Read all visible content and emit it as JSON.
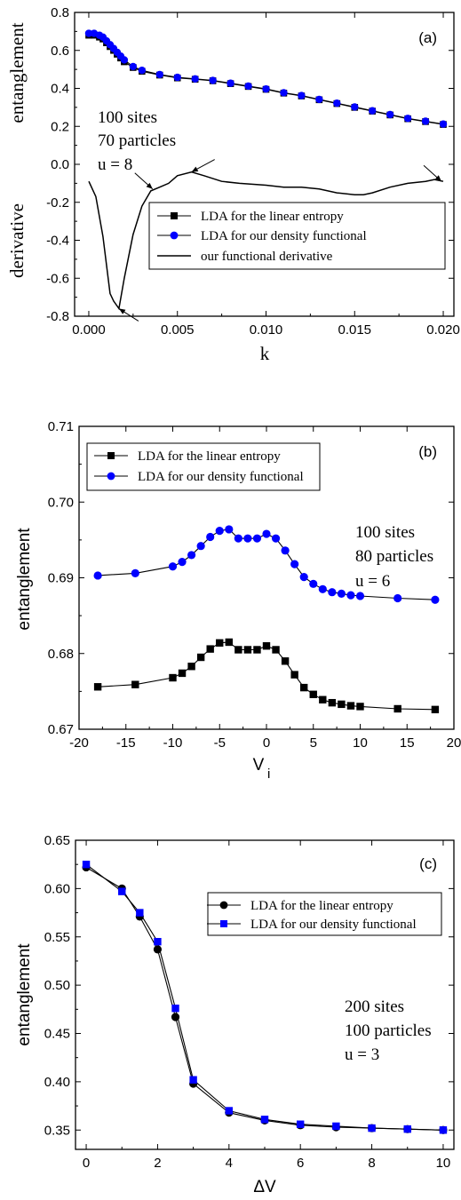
{
  "chart_data": [
    {
      "type": "line",
      "panel_label": "(a)",
      "xlabel": "k",
      "ylabel_top": "entanglement",
      "ylabel_bottom": "derivative",
      "xlim": [
        -0.0008,
        0.0206
      ],
      "ylim": [
        -0.8,
        0.8
      ],
      "xticks": [
        "0.000",
        "0.005",
        "0.010",
        "0.015",
        "0.020"
      ],
      "yticks": [
        "-0.8",
        "-0.6",
        "-0.4",
        "-0.2",
        "0.0",
        "0.2",
        "0.4",
        "0.6",
        "0.8"
      ],
      "annotations": [
        "100 sites",
        "70 particles",
        "u = 8"
      ],
      "legend_placement": "center-right",
      "arrows": [
        {
          "x": 0.0017,
          "y": -0.76
        },
        {
          "x": 0.0036,
          "y": -0.13
        },
        {
          "x": 0.0058,
          "y": -0.04
        },
        {
          "x": 0.0199,
          "y": -0.09
        }
      ],
      "series": [
        {
          "name": "LDA for the linear entropy",
          "marker": "square",
          "color": "#000000",
          "x": [
            0.0,
            0.0003,
            0.0006,
            0.0008,
            0.001,
            0.0012,
            0.0014,
            0.0016,
            0.0018,
            0.002,
            0.0025,
            0.003,
            0.004,
            0.005,
            0.006,
            0.007,
            0.008,
            0.009,
            0.01,
            0.011,
            0.012,
            0.013,
            0.014,
            0.015,
            0.016,
            0.017,
            0.018,
            0.019,
            0.02
          ],
          "y": [
            0.68,
            0.68,
            0.67,
            0.66,
            0.64,
            0.62,
            0.6,
            0.58,
            0.56,
            0.54,
            0.51,
            0.49,
            0.47,
            0.455,
            0.448,
            0.44,
            0.425,
            0.41,
            0.395,
            0.375,
            0.36,
            0.34,
            0.32,
            0.3,
            0.28,
            0.26,
            0.24,
            0.225,
            0.21
          ]
        },
        {
          "name": "LDA for our density functional",
          "marker": "circle",
          "color": "#0000ff",
          "x": [
            0.0,
            0.0003,
            0.0006,
            0.0008,
            0.001,
            0.0012,
            0.0014,
            0.0016,
            0.0018,
            0.002,
            0.0025,
            0.003,
            0.004,
            0.005,
            0.006,
            0.007,
            0.008,
            0.009,
            0.01,
            0.011,
            0.012,
            0.013,
            0.014,
            0.015,
            0.016,
            0.017,
            0.018,
            0.019,
            0.02
          ],
          "y": [
            0.69,
            0.69,
            0.68,
            0.67,
            0.65,
            0.63,
            0.61,
            0.59,
            0.57,
            0.55,
            0.515,
            0.495,
            0.473,
            0.458,
            0.45,
            0.442,
            0.427,
            0.412,
            0.397,
            0.377,
            0.362,
            0.342,
            0.322,
            0.302,
            0.282,
            0.262,
            0.242,
            0.227,
            0.212
          ]
        },
        {
          "name": "our functional derivative",
          "marker": "none",
          "color": "#000000",
          "x": [
            0.0,
            0.0004,
            0.0008,
            0.0012,
            0.0014,
            0.0017,
            0.002,
            0.0025,
            0.003,
            0.0035,
            0.004,
            0.0045,
            0.005,
            0.0058,
            0.0065,
            0.0075,
            0.0085,
            0.01,
            0.011,
            0.012,
            0.013,
            0.014,
            0.015,
            0.0155,
            0.016,
            0.017,
            0.018,
            0.019,
            0.0195,
            0.02
          ],
          "y": [
            -0.09,
            -0.17,
            -0.38,
            -0.68,
            -0.72,
            -0.76,
            -0.6,
            -0.37,
            -0.22,
            -0.14,
            -0.12,
            -0.1,
            -0.06,
            -0.04,
            -0.06,
            -0.09,
            -0.1,
            -0.11,
            -0.12,
            -0.12,
            -0.13,
            -0.15,
            -0.16,
            -0.16,
            -0.15,
            -0.12,
            -0.1,
            -0.09,
            -0.08,
            -0.09
          ]
        }
      ]
    },
    {
      "type": "line",
      "panel_label": "(b)",
      "xlabel": "V",
      "xlabel_subscript": "i",
      "ylabel": "entanglement",
      "xlim": [
        -20,
        20
      ],
      "ylim": [
        0.67,
        0.71
      ],
      "xticks": [
        "-20",
        "-15",
        "-10",
        "-5",
        "0",
        "5",
        "10",
        "15",
        "20"
      ],
      "yticks": [
        "0.67",
        "0.68",
        "0.69",
        "0.70",
        "0.71"
      ],
      "annotations": [
        "100 sites",
        "80 particles",
        "u = 6"
      ],
      "legend_placement": "top-left",
      "series": [
        {
          "name": "LDA for the linear entropy",
          "marker": "square",
          "color": "#000000",
          "x": [
            -18,
            -14,
            -10,
            -9,
            -8,
            -7,
            -6,
            -5,
            -4,
            -3,
            -2,
            -1,
            0,
            1,
            2,
            3,
            4,
            5,
            6,
            7,
            8,
            9,
            10,
            14,
            18
          ],
          "y": [
            0.6756,
            0.6759,
            0.6768,
            0.6774,
            0.6783,
            0.6795,
            0.6806,
            0.6814,
            0.6815,
            0.6805,
            0.6805,
            0.6805,
            0.681,
            0.6805,
            0.679,
            0.6772,
            0.6755,
            0.6746,
            0.6739,
            0.6735,
            0.6733,
            0.6731,
            0.673,
            0.6727,
            0.6726
          ]
        },
        {
          "name": "LDA for our density functional",
          "marker": "circle",
          "color": "#0000ff",
          "x": [
            -18,
            -14,
            -10,
            -9,
            -8,
            -7,
            -6,
            -5,
            -4,
            -3,
            -2,
            -1,
            0,
            1,
            2,
            3,
            4,
            5,
            6,
            7,
            8,
            9,
            10,
            14,
            18
          ],
          "y": [
            0.6903,
            0.6906,
            0.6915,
            0.6921,
            0.693,
            0.6942,
            0.6954,
            0.6962,
            0.6964,
            0.6952,
            0.6952,
            0.6952,
            0.6958,
            0.6952,
            0.6936,
            0.6918,
            0.6901,
            0.6892,
            0.6885,
            0.6881,
            0.6879,
            0.6877,
            0.6876,
            0.6873,
            0.6871
          ]
        }
      ]
    },
    {
      "type": "line",
      "panel_label": "(c)",
      "xlabel": "ΔV",
      "ylabel": "entanglement",
      "xlim": [
        -0.3,
        10.3
      ],
      "ylim": [
        0.33,
        0.65
      ],
      "xticks": [
        "0",
        "2",
        "4",
        "6",
        "8",
        "10"
      ],
      "yticks": [
        "0.35",
        "0.40",
        "0.45",
        "0.50",
        "0.55",
        "0.60",
        "0.65"
      ],
      "annotations": [
        "200 sites",
        "100 particles",
        "u = 3"
      ],
      "legend_placement": "top-right",
      "series": [
        {
          "name": "LDA for the linear entropy",
          "marker": "circle",
          "color": "#000000",
          "x": [
            0,
            1,
            1.5,
            2,
            2.5,
            3,
            4,
            5,
            6,
            7,
            8,
            9,
            10
          ],
          "y": [
            0.622,
            0.6,
            0.571,
            0.537,
            0.467,
            0.398,
            0.368,
            0.36,
            0.355,
            0.353,
            0.352,
            0.351,
            0.35
          ]
        },
        {
          "name": "LDA for our density functional",
          "marker": "square",
          "color": "#0000ff",
          "x": [
            0,
            1,
            1.5,
            2,
            2.5,
            3,
            4,
            5,
            6,
            7,
            8,
            9,
            10
          ],
          "y": [
            0.625,
            0.597,
            0.575,
            0.545,
            0.476,
            0.402,
            0.37,
            0.361,
            0.356,
            0.354,
            0.352,
            0.351,
            0.35
          ]
        }
      ]
    }
  ]
}
